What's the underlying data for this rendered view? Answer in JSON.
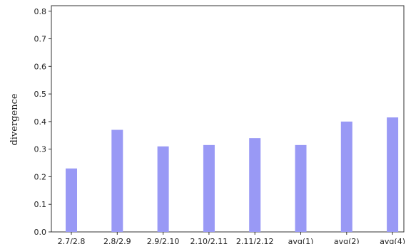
{
  "chart_data": {
    "type": "bar",
    "categories": [
      "2.7/2.8",
      "2.8/2.9",
      "2.9/2.10",
      "2.10/2.11",
      "2.11/2.12",
      "avg(1)",
      "avg(2)",
      "avg(4)"
    ],
    "values": [
      0.23,
      0.37,
      0.31,
      0.315,
      0.34,
      0.315,
      0.4,
      0.415
    ],
    "title": "",
    "xlabel": "",
    "ylabel": "divergence",
    "ylim": [
      0,
      0.82
    ],
    "yticks": [
      "0.0",
      "0.1",
      "0.2",
      "0.3",
      "0.4",
      "0.5",
      "0.6",
      "0.7",
      "0.8"
    ],
    "bar_color": "#9999f5",
    "grid": false,
    "legend": "none"
  }
}
